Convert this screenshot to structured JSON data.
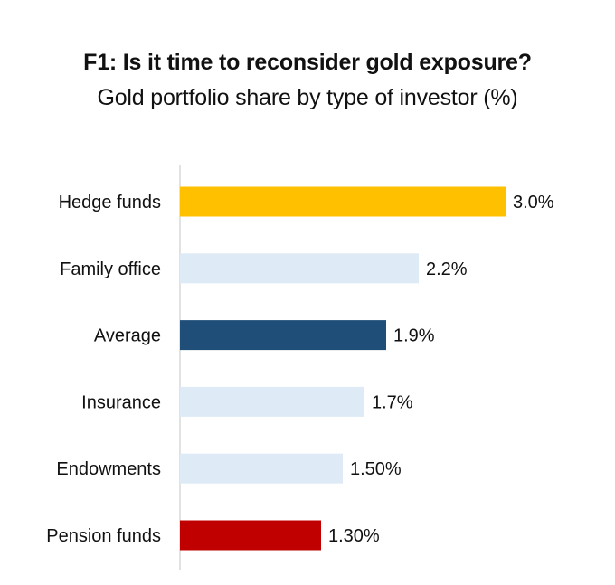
{
  "header": {
    "title": "F1: Is it time to reconsider gold exposure?",
    "subtitle": "Gold portfolio share by type of investor (%)"
  },
  "chart_data": {
    "type": "bar",
    "orientation": "horizontal",
    "title": "F1: Is it time to reconsider gold exposure?",
    "subtitle": "Gold portfolio share by type of investor (%)",
    "xlabel": "",
    "ylabel": "",
    "xlim": [
      0,
      3.0
    ],
    "grid": false,
    "legend": "none",
    "categories": [
      "Hedge funds",
      "Family office",
      "Average",
      "Insurance",
      "Endowments",
      "Pension funds"
    ],
    "values": [
      3.0,
      2.2,
      1.9,
      1.7,
      1.5,
      1.3
    ],
    "data_labels": [
      "3.0%",
      "2.2%",
      "1.9%",
      "1.7%",
      "1.50%",
      "1.30%"
    ],
    "colors": [
      "#FFC000",
      "#DEEAF6",
      "#1F4E79",
      "#DEEAF6",
      "#DEEAF6",
      "#C00000"
    ],
    "axis_color": "#D9D9D9"
  }
}
